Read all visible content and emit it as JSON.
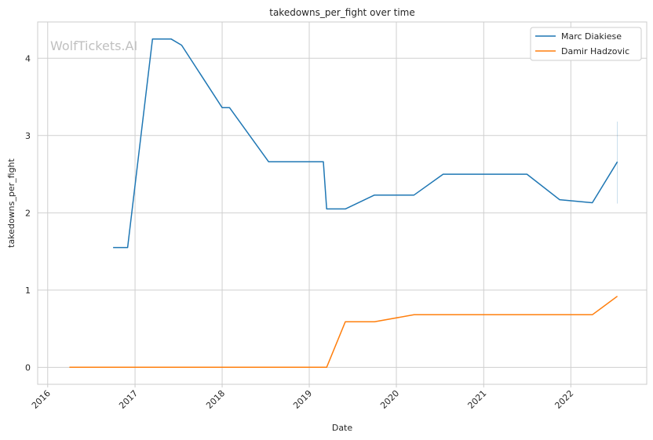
{
  "watermark": "WolfTickets.AI",
  "chart_data": {
    "type": "line",
    "title": "takedowns_per_fight over time",
    "xlabel": "Date",
    "ylabel": "takedowns_per_fight",
    "xlim": [
      "2015-11-20",
      "2022-11-15"
    ],
    "ylim": [
      -0.22,
      4.47
    ],
    "x_ticks": [
      "2016",
      "2017",
      "2018",
      "2019",
      "2020",
      "2021",
      "2022"
    ],
    "y_ticks": [
      0,
      1,
      2,
      3,
      4
    ],
    "grid": true,
    "legend_position": "top-right",
    "series": [
      {
        "name": "Marc Diakiese",
        "color": "#1f77b4",
        "points": [
          [
            "2016-10-01",
            1.55
          ],
          [
            "2016-12-01",
            1.55
          ],
          [
            "2017-03-15",
            4.25
          ],
          [
            "2017-06-01",
            4.25
          ],
          [
            "2017-07-15",
            4.17
          ],
          [
            "2018-01-01",
            3.36
          ],
          [
            "2018-02-01",
            3.36
          ],
          [
            "2018-07-15",
            2.66
          ],
          [
            "2019-03-01",
            2.66
          ],
          [
            "2019-03-15",
            2.05
          ],
          [
            "2019-06-01",
            2.05
          ],
          [
            "2019-10-01",
            2.23
          ],
          [
            "2020-03-15",
            2.23
          ],
          [
            "2020-07-15",
            2.5
          ],
          [
            "2021-07-01",
            2.5
          ],
          [
            "2021-11-15",
            2.17
          ],
          [
            "2022-04-01",
            2.13
          ],
          [
            "2022-07-15",
            2.66
          ]
        ],
        "error_bar": {
          "x": "2022-07-15",
          "low": 2.12,
          "high": 3.18
        }
      },
      {
        "name": "Damir Hadzovic",
        "color": "#ff7f0e",
        "points": [
          [
            "2016-04-01",
            0.0
          ],
          [
            "2019-03-15",
            0.0
          ],
          [
            "2019-06-01",
            0.59
          ],
          [
            "2019-10-01",
            0.59
          ],
          [
            "2020-03-15",
            0.68
          ],
          [
            "2020-07-15",
            0.68
          ],
          [
            "2021-11-15",
            0.68
          ],
          [
            "2022-04-01",
            0.68
          ],
          [
            "2022-07-15",
            0.92
          ]
        ]
      }
    ]
  }
}
